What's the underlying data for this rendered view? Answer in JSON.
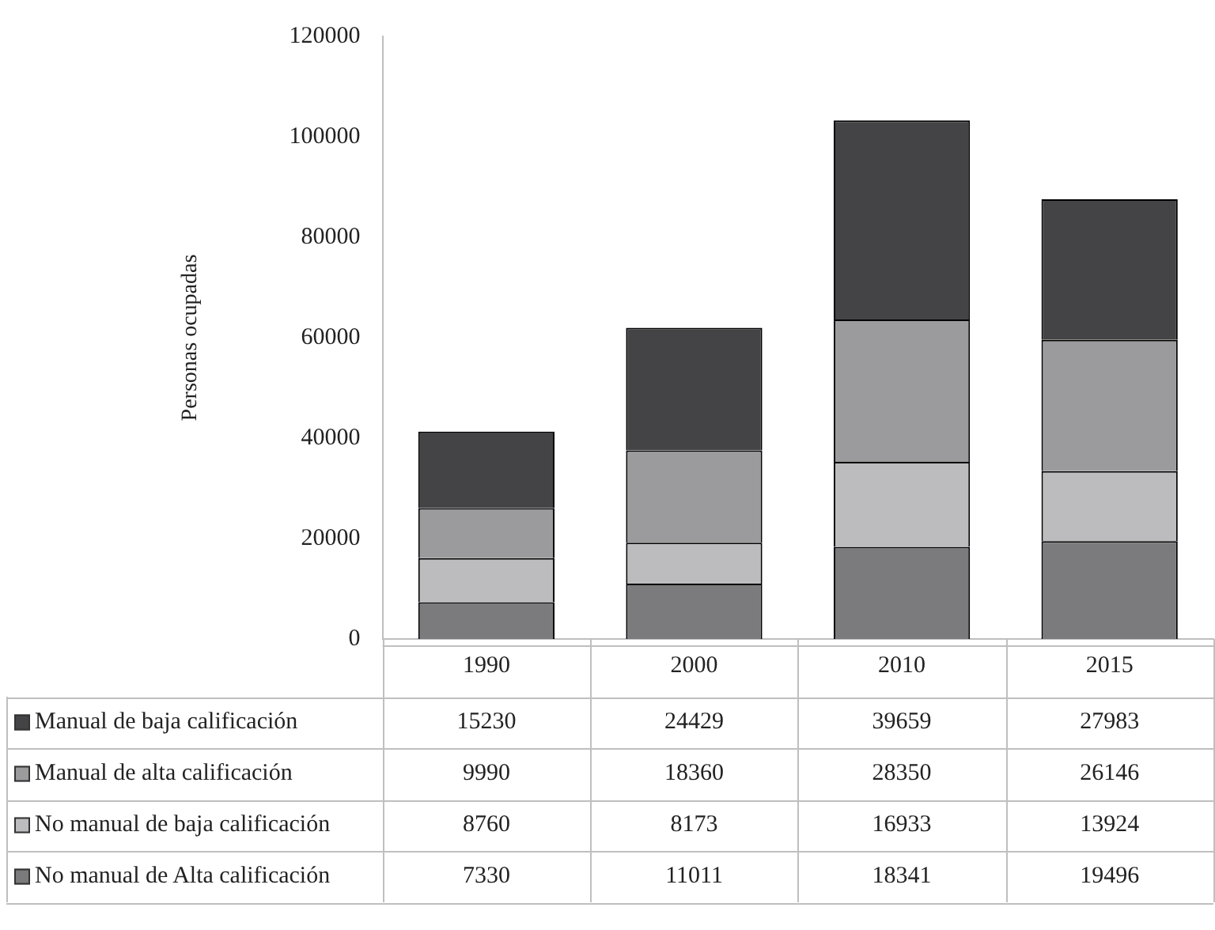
{
  "chart_data": {
    "type": "bar",
    "stacked": true,
    "ylabel": "Personas ocupadas",
    "categories": [
      "1990",
      "2000",
      "2010",
      "2015"
    ],
    "series": [
      {
        "name": "No manual de Alta calificación",
        "color": "#7b7b7d",
        "values": [
          7330,
          11011,
          18341,
          19496
        ]
      },
      {
        "name": "No manual de baja calificación",
        "color": "#bcbcbe",
        "values": [
          8760,
          8173,
          16933,
          13924
        ]
      },
      {
        "name": "Manual de alta calificación",
        "color": "#9b9b9d",
        "values": [
          9990,
          18360,
          28350,
          26146
        ]
      },
      {
        "name": "Manual de baja calificación",
        "color": "#444446",
        "values": [
          15230,
          24429,
          39659,
          27983
        ]
      }
    ],
    "ylim": [
      0,
      120000
    ],
    "yticks": [
      0,
      20000,
      40000,
      60000,
      80000,
      100000,
      120000
    ],
    "grid": false,
    "legend": "bottom",
    "data_labels": true
  }
}
